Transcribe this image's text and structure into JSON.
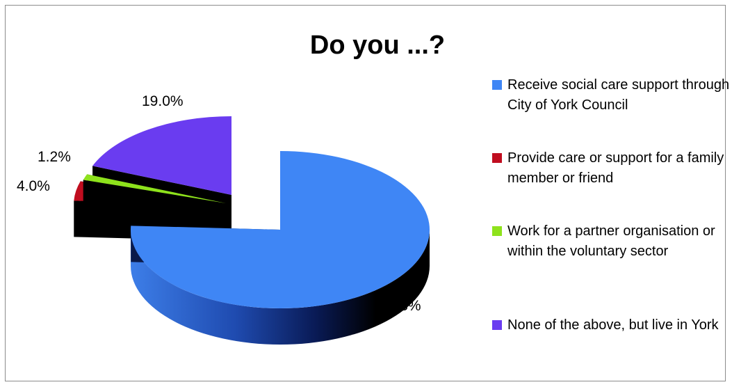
{
  "chart_data": {
    "type": "pie",
    "title": "Do you ...?",
    "categories": [
      "Receive social care support through City of York Council",
      "Provide care or support for a family member or friend",
      "Work for a partner organisation or within the voluntary sector",
      "None of the above, but live in York"
    ],
    "values": [
      75.8,
      4.0,
      1.2,
      19.0
    ],
    "data_labels": [
      "75.8%",
      "4.0%",
      "1.2%",
      "19.0%"
    ],
    "colors": [
      "#3f86f5",
      "#c00d1f",
      "#8ee21c",
      "#6a3cf0"
    ],
    "legend_position": "right",
    "style": "3d-exploded"
  }
}
